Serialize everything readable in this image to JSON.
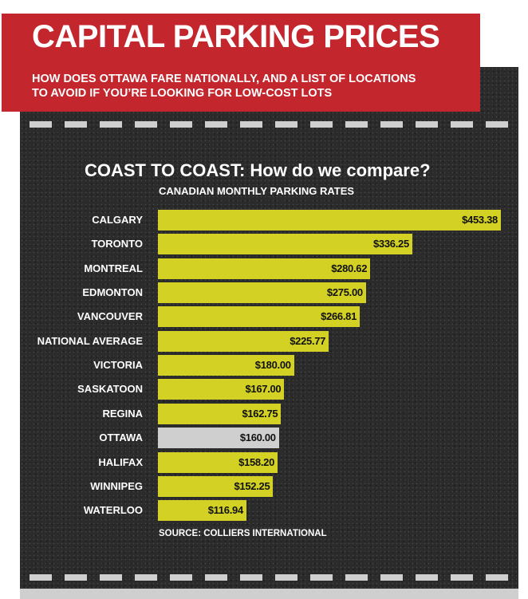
{
  "header": {
    "title": "CAPITAL PARKING PRICES",
    "subtitle_line1": "HOW DOES OTTAWA FARE NATIONALLY, AND A LIST OF LOCATIONS",
    "subtitle_line2": "TO AVOID IF YOU’RE LOOKING FOR LOW-COST LOTS"
  },
  "chart_data": {
    "type": "bar",
    "orientation": "horizontal",
    "title": "COAST TO COAST: How do we compare?",
    "subtitle": "CANADIAN MONTHLY PARKING RATES",
    "categories": [
      "CALGARY",
      "TORONTO",
      "MONTREAL",
      "EDMONTON",
      "VANCOUVER",
      "NATIONAL AVERAGE",
      "VICTORIA",
      "SASKATOON",
      "REGINA",
      "OTTAWA",
      "HALIFAX",
      "WINNIPEG",
      "WATERLOO"
    ],
    "values": [
      453.38,
      336.25,
      280.62,
      275.0,
      266.81,
      225.77,
      180.0,
      167.0,
      162.75,
      160.0,
      158.2,
      152.25,
      116.94
    ],
    "value_labels": [
      "$453.38",
      "$336.25",
      "$280.62",
      "$275.00",
      "$266.81",
      "$225.77",
      "$180.00",
      "$167.00",
      "$162.75",
      "$160.00",
      "$158.20",
      "$152.25",
      "$116.94"
    ],
    "highlight": "OTTAWA",
    "xlim": [
      0,
      453.38
    ],
    "xlabel": "",
    "ylabel": "",
    "source": "SOURCE: COLLIERS INTERNATIONAL",
    "colors": {
      "bar": "#d2d124",
      "highlight": "#cfcfcf",
      "background": "#2b2b2b",
      "header": "#c4262e"
    }
  }
}
